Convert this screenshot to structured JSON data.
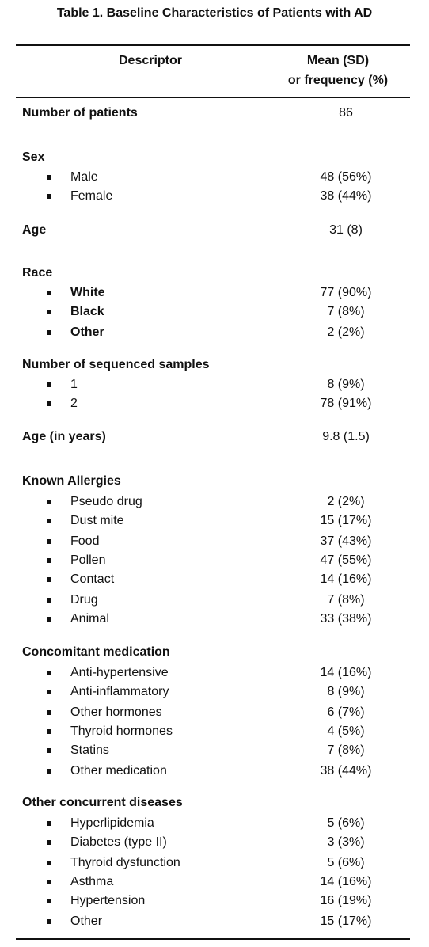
{
  "table": {
    "title": "Table 1. Baseline Characteristics of Patients with AD",
    "header": {
      "descriptor": "Descriptor",
      "value_line1": "Mean (SD)",
      "value_line2": "or frequency (%)"
    },
    "rows": [
      {
        "type": "main",
        "label": "Number of patients",
        "value": "86"
      },
      {
        "type": "main",
        "label": "Sex",
        "value": ""
      },
      {
        "type": "sub",
        "label": "Male",
        "value": "48 (56%)"
      },
      {
        "type": "sub",
        "label": "Female",
        "value": "38 (44%)"
      },
      {
        "type": "main",
        "label": "Age",
        "value": "31 (8)"
      },
      {
        "type": "main",
        "label": "Race",
        "value": ""
      },
      {
        "type": "sub",
        "label": "White",
        "value": "77 (90%)",
        "bold": true
      },
      {
        "type": "sub",
        "label": "Black",
        "value": "7 (8%)",
        "bold": true
      },
      {
        "type": "sub",
        "label": "Other",
        "value": "2 (2%)",
        "bold": true
      },
      {
        "type": "main",
        "label": "Number of sequenced samples",
        "value": ""
      },
      {
        "type": "sub",
        "label": "1",
        "value": "8 (9%)"
      },
      {
        "type": "sub",
        "label": "2",
        "value": "78 (91%)"
      },
      {
        "type": "main",
        "label": "Age (in years)",
        "value": "9.8 (1.5)"
      },
      {
        "type": "main",
        "label": "Known Allergies",
        "value": ""
      },
      {
        "type": "sub",
        "label": "Pseudo drug",
        "value": "2 (2%)"
      },
      {
        "type": "sub",
        "label": "Dust mite",
        "value": "15 (17%)"
      },
      {
        "type": "sub",
        "label": "Food",
        "value": "37 (43%)"
      },
      {
        "type": "sub",
        "label": "Pollen",
        "value": "47 (55%)"
      },
      {
        "type": "sub",
        "label": "Contact",
        "value": "14 (16%)"
      },
      {
        "type": "sub",
        "label": "Drug",
        "value": "7 (8%)"
      },
      {
        "type": "sub",
        "label": "Animal",
        "value": "33 (38%)"
      },
      {
        "type": "main",
        "label": "Concomitant medication",
        "value": ""
      },
      {
        "type": "sub",
        "label": "Anti-hypertensive",
        "value": "14 (16%)"
      },
      {
        "type": "sub",
        "label": "Anti-inflammatory",
        "value": "8 (9%)"
      },
      {
        "type": "sub",
        "label": "Other hormones",
        "value": "6 (7%)"
      },
      {
        "type": "sub",
        "label": "Thyroid hormones",
        "value": "4 (5%)"
      },
      {
        "type": "sub",
        "label": "Statins",
        "value": "7 (8%)"
      },
      {
        "type": "sub",
        "label": "Other medication",
        "value": "38 (44%)"
      },
      {
        "type": "main",
        "label": "Other concurrent diseases",
        "value": ""
      },
      {
        "type": "sub",
        "label": "Hyperlipidemia",
        "value": "5 (6%)"
      },
      {
        "type": "sub",
        "label": "Diabetes (type II)",
        "value": "3 (3%)"
      },
      {
        "type": "sub",
        "label": "Thyroid dysfunction",
        "value": "5 (6%)"
      },
      {
        "type": "sub",
        "label": "Asthma",
        "value": "14 (16%)"
      },
      {
        "type": "sub",
        "label": "Hypertension",
        "value": "16 (19%)"
      },
      {
        "type": "sub",
        "label": "Other",
        "value": "15 (17%)"
      }
    ]
  }
}
